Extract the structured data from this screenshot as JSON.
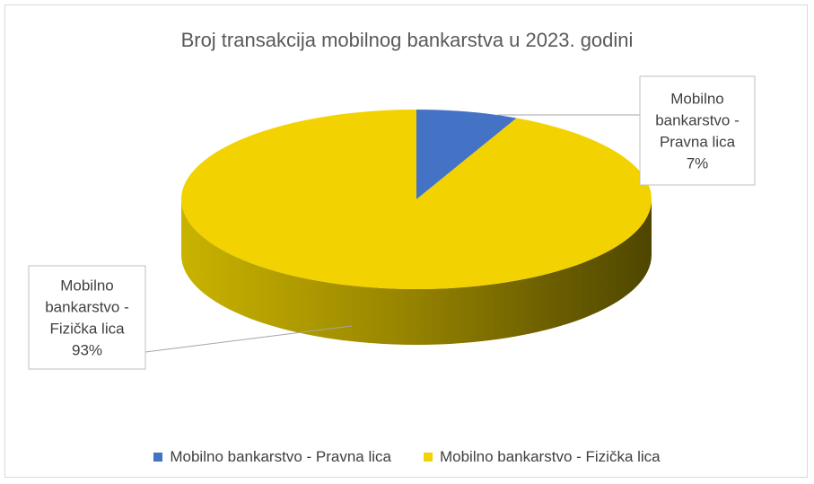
{
  "chart_data": {
    "type": "pie",
    "title": "Broj transakcija mobilnog bankarstva u 2023. godini",
    "categories": [
      "Mobilno bankarstvo - Pravna lica",
      "Mobilno bankarstvo - Fizička lica"
    ],
    "values": [
      7,
      93
    ],
    "unit": "%",
    "data_labels": [
      {
        "lines": [
          "Mobilno",
          "bankarstvo -",
          "Pravna lica",
          "7%"
        ]
      },
      {
        "lines": [
          "Mobilno",
          "bankarstvo -",
          "Fizička lica",
          "93%"
        ]
      }
    ],
    "colors": [
      "#4472c4",
      "#f2d200"
    ],
    "side_colors": [
      "#2f5597",
      "#a89400"
    ],
    "style": "3d-pie",
    "legend": "bottom"
  }
}
